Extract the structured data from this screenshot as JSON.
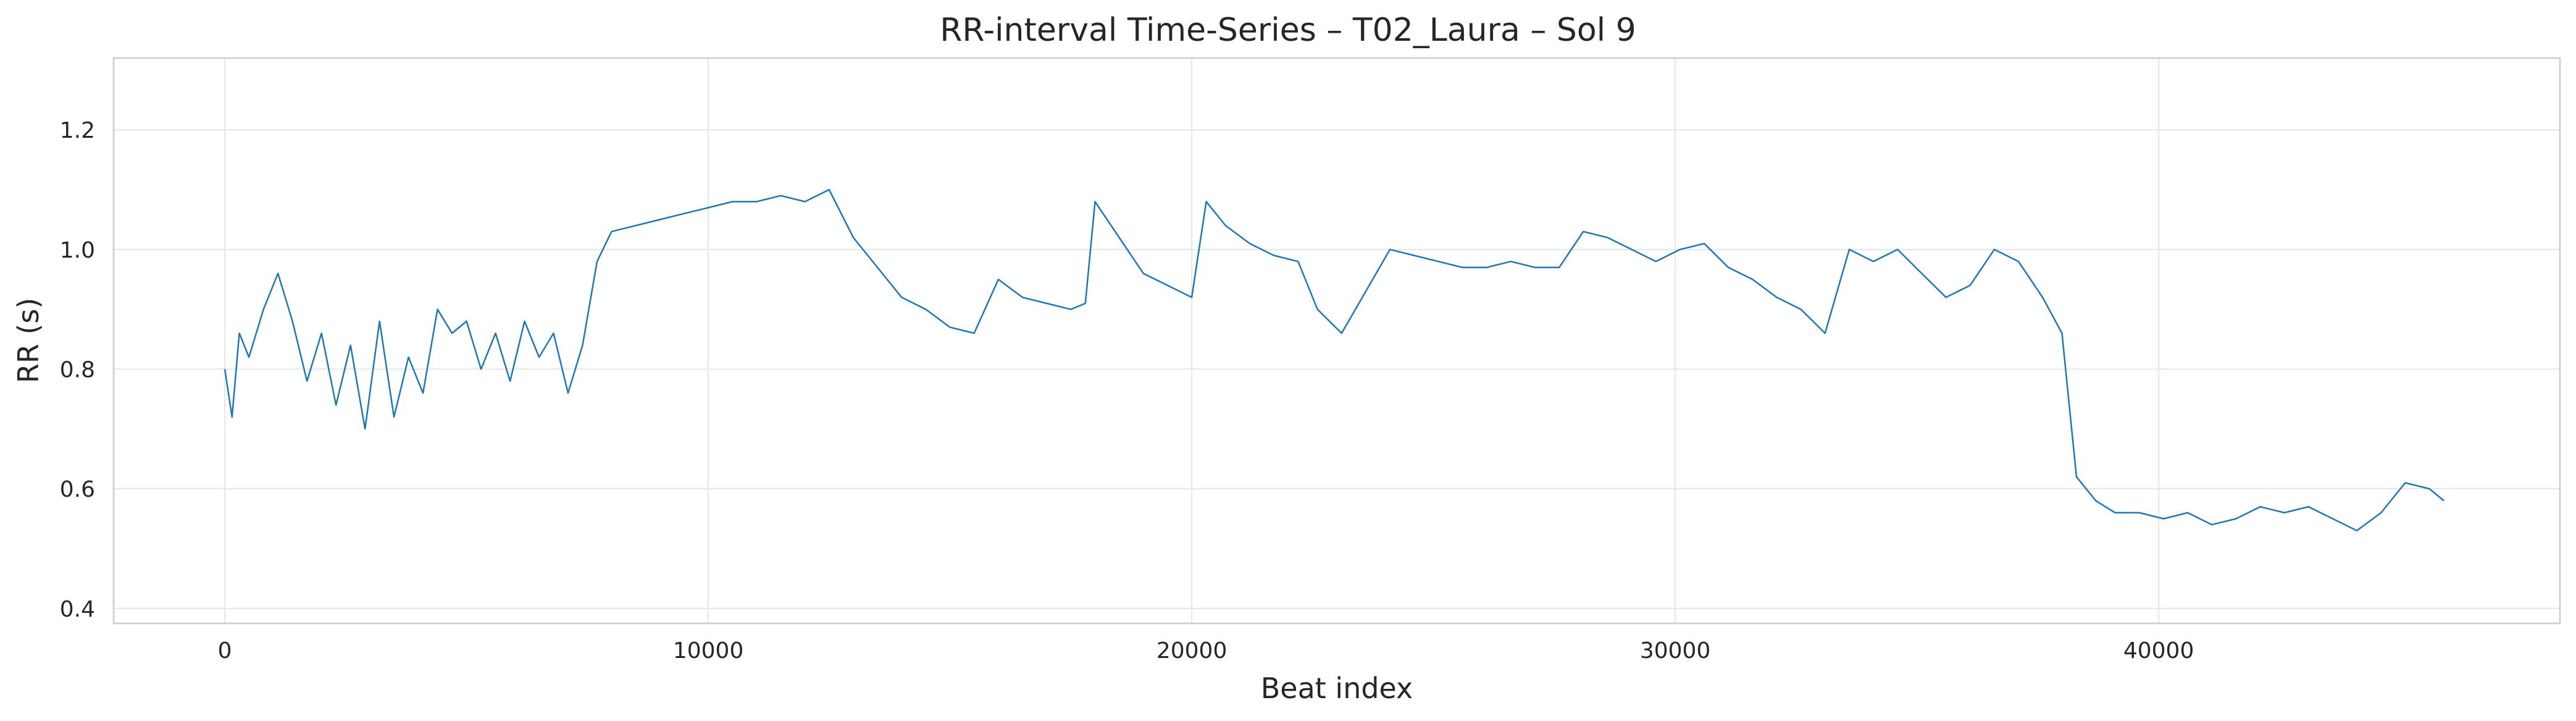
{
  "chart_data": {
    "type": "line",
    "title": "RR-interval Time-Series – T02_Laura – Sol 9",
    "xlabel": "Beat index",
    "ylabel": "RR (s)",
    "xlim": [
      -2300,
      48300
    ],
    "ylim": [
      0.375,
      1.32
    ],
    "xticks": [
      0,
      10000,
      20000,
      30000,
      40000
    ],
    "xtick_labels": [
      "0",
      "10000",
      "20000",
      "30000",
      "40000"
    ],
    "yticks": [
      0.4,
      0.6,
      0.8,
      1.0,
      1.2
    ],
    "ytick_labels": [
      "0.4",
      "0.6",
      "0.8",
      "1.0",
      "1.2"
    ],
    "grid": true,
    "line_color": "#1f77b4",
    "series": [
      {
        "x": [
          0,
          150,
          300,
          500,
          800,
          1100,
          1400,
          1700,
          2000,
          2300,
          2600,
          2900,
          3200,
          3500,
          3800,
          4100,
          4400,
          4700,
          5000,
          5300,
          5600,
          5900,
          6200,
          6500,
          6800,
          7100,
          7400,
          7700,
          8000,
          8500,
          9000,
          9500,
          10000,
          10500,
          11000,
          11500,
          12000,
          12500,
          13000,
          13500,
          14000,
          14500,
          15000,
          15500,
          16000,
          16500,
          17000,
          17500,
          17800,
          18000,
          18500,
          19000,
          19500,
          20000,
          20300,
          20700,
          21200,
          21700,
          22200,
          22600,
          23100,
          23600,
          24100,
          24600,
          25100,
          25600,
          26100,
          26600,
          27100,
          27600,
          28100,
          28600,
          29100,
          29600,
          30100,
          30600,
          31100,
          31600,
          32100,
          32600,
          33100,
          33600,
          34100,
          34600,
          35100,
          35600,
          36100,
          36600,
          37100,
          37600,
          38000,
          38300,
          38700,
          39100,
          39600,
          40100,
          40600,
          41100,
          41600,
          42100,
          42600,
          43100,
          43600,
          44100,
          44600,
          45100,
          45600,
          45900
        ],
        "values": [
          0.8,
          0.72,
          0.86,
          0.82,
          0.9,
          0.96,
          0.88,
          0.78,
          0.86,
          0.74,
          0.84,
          0.7,
          0.88,
          0.72,
          0.82,
          0.76,
          0.9,
          0.86,
          0.88,
          0.8,
          0.86,
          0.78,
          0.88,
          0.82,
          0.86,
          0.76,
          0.84,
          0.98,
          1.03,
          1.04,
          1.05,
          1.06,
          1.07,
          1.08,
          1.08,
          1.09,
          1.08,
          1.1,
          1.02,
          0.97,
          0.92,
          0.9,
          0.87,
          0.86,
          0.95,
          0.92,
          0.91,
          0.9,
          0.91,
          1.08,
          1.02,
          0.96,
          0.94,
          0.92,
          1.08,
          1.04,
          1.01,
          0.99,
          0.98,
          0.9,
          0.86,
          0.93,
          1.0,
          0.99,
          0.98,
          0.97,
          0.97,
          0.98,
          0.97,
          0.97,
          1.03,
          1.02,
          1.0,
          0.98,
          1.0,
          1.01,
          0.97,
          0.95,
          0.92,
          0.9,
          0.86,
          1.0,
          0.98,
          1.0,
          0.96,
          0.92,
          0.94,
          1.0,
          0.98,
          0.92,
          0.86,
          0.62,
          0.58,
          0.56,
          0.56,
          0.55,
          0.56,
          0.54,
          0.55,
          0.57,
          0.56,
          0.57,
          0.55,
          0.53,
          0.56,
          0.61,
          0.6,
          0.58
        ]
      }
    ]
  }
}
